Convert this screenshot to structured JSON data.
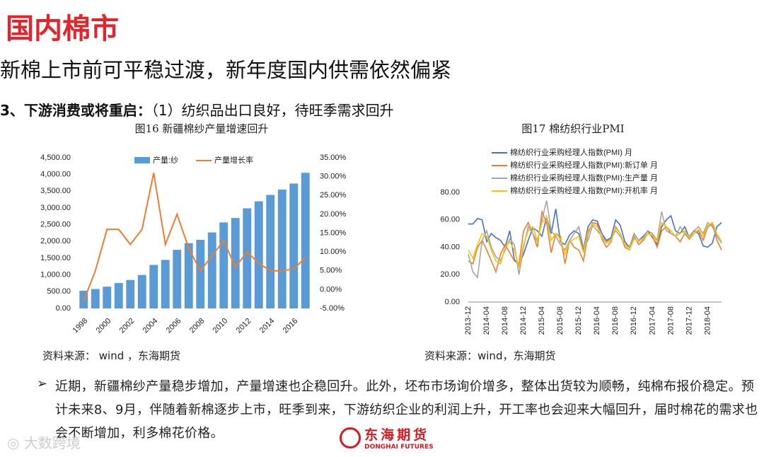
{
  "title": "国内棉市",
  "subtitle": "新棉上市前可平稳过渡，新年度国内供需依然偏紧",
  "section": {
    "label": "3、下游消费或将重启：",
    "text": "（1）纺织品出口良好，待旺季需求回升"
  },
  "chart_data": [
    {
      "type": "bar",
      "title": "图16 新疆棉纱产量增速回升",
      "categories": [
        "1998",
        null,
        "2000",
        null,
        "2002",
        null,
        "2004",
        null,
        "2006",
        null,
        "2008",
        null,
        "2010",
        null,
        "2012",
        null,
        "2014",
        null,
        "2016",
        null
      ],
      "series": [
        {
          "name": "产量:纱",
          "type": "bar",
          "color": "#5b9bd5",
          "values": [
            530,
            580,
            650,
            760,
            850,
            1000,
            1300,
            1450,
            1750,
            1950,
            2050,
            2270,
            2570,
            2700,
            2990,
            3200,
            3390,
            3550,
            3730,
            4050
          ]
        },
        {
          "name": "产量增长率",
          "type": "line",
          "axis": "y2",
          "color": "#ed7d31",
          "values": [
            -3,
            5,
            16,
            16,
            12,
            16,
            31,
            12,
            20,
            11,
            5,
            9,
            13,
            6,
            10,
            7,
            5,
            5,
            5.5,
            8.5
          ]
        }
      ],
      "ylim": [
        0,
        4500
      ],
      "yticks": [
        {
          "value": 0,
          "label": "0.00"
        },
        {
          "value": 500,
          "label": "500.00"
        },
        {
          "value": 1000,
          "label": "1,000.00"
        },
        {
          "value": 1500,
          "label": "1,500.00"
        },
        {
          "value": 2000,
          "label": "2,000.00"
        },
        {
          "value": 2500,
          "label": "2,500.00"
        },
        {
          "value": 3000,
          "label": "3,000.00"
        },
        {
          "value": 3500,
          "label": "3,500.00"
        },
        {
          "value": 4000,
          "label": "4,000.00"
        },
        {
          "value": 4500,
          "label": "4,500.00"
        }
      ],
      "y2lim": [
        -5,
        35
      ],
      "y2ticks": [
        {
          "value": -5,
          "label": "-5.00%"
        },
        {
          "value": 0,
          "label": "0.00%"
        },
        {
          "value": 5,
          "label": "5.00%"
        },
        {
          "value": 10,
          "label": "10.00%"
        },
        {
          "value": 15,
          "label": "15.00%"
        },
        {
          "value": 20,
          "label": "20.00%"
        },
        {
          "value": 25,
          "label": "25.00%"
        },
        {
          "value": 30,
          "label": "30.00%"
        },
        {
          "value": 35,
          "label": "35.00%"
        }
      ],
      "grid": false,
      "legend": "top"
    },
    {
      "type": "line",
      "title": "图17 棉纺织行业PMI",
      "categories": [
        "2013-12",
        null,
        null,
        null,
        "2014-04",
        null,
        null,
        null,
        "2014-08",
        null,
        null,
        null,
        "2014-12",
        null,
        null,
        null,
        "2015-04",
        null,
        null,
        null,
        "2015-08",
        null,
        null,
        null,
        "2015-12",
        null,
        null,
        null,
        "2016-04",
        null,
        null,
        null,
        "2016-08",
        null,
        null,
        null,
        "2016-12",
        null,
        null,
        null,
        "2017-04",
        null,
        null,
        null,
        "2017-08",
        null,
        null,
        null,
        "2017-12",
        null,
        null,
        null,
        "2018-04",
        null,
        null,
        null
      ],
      "series": [
        {
          "name": "棉纺织行业采购经理人指数(PMI) 月",
          "color": "#4472c4",
          "values": [
            57,
            57,
            61,
            60,
            44,
            50,
            47,
            45,
            40,
            52,
            31,
            27,
            35,
            45,
            54,
            52,
            48,
            62,
            50,
            68,
            44,
            42,
            49,
            52,
            50,
            38,
            55,
            60,
            59,
            50,
            45,
            47,
            60,
            56,
            44,
            40,
            50,
            45,
            48,
            52,
            47,
            42,
            55,
            60,
            63,
            52,
            50,
            55,
            47,
            52,
            50,
            41,
            40,
            43,
            55,
            58
          ]
        },
        {
          "name": "棉纺织行业采购经理人指数(PMI):新订单 月",
          "color": "#ed7d31",
          "values": [
            30,
            28,
            40,
            45,
            38,
            30,
            22,
            35,
            42,
            36,
            30,
            28,
            52,
            58,
            50,
            40,
            66,
            58,
            36,
            50,
            48,
            28,
            45,
            40,
            38,
            30,
            50,
            58,
            57,
            46,
            40,
            44,
            55,
            50,
            40,
            38,
            48,
            42,
            45,
            50,
            48,
            40,
            52,
            55,
            50,
            48,
            44,
            50,
            46,
            50,
            52,
            45,
            55,
            57,
            45,
            38
          ]
        },
        {
          "name": "棉纺织行业采购经理人指数(PMI):生产量 月",
          "color": "#a5a5a5",
          "values": [
            35,
            22,
            18,
            45,
            52,
            40,
            33,
            30,
            38,
            46,
            42,
            20,
            40,
            55,
            50,
            44,
            60,
            74,
            52,
            48,
            42,
            38,
            45,
            50,
            55,
            40,
            45,
            56,
            52,
            48,
            44,
            46,
            52,
            48,
            42,
            40,
            50,
            45,
            47,
            52,
            50,
            45,
            66,
            52,
            50,
            48,
            55,
            50,
            48,
            52,
            55,
            50,
            58,
            55,
            48,
            43
          ]
        },
        {
          "name": "棉纺织行业采购经理人指数(PMI):开机率 月",
          "color": "#ffc000",
          "values": [
            38,
            32,
            42,
            50,
            48,
            38,
            30,
            28,
            40,
            44,
            38,
            25,
            42,
            52,
            55,
            45,
            58,
            62,
            45,
            50,
            46,
            35,
            44,
            46,
            48,
            36,
            52,
            57,
            55,
            47,
            43,
            45,
            54,
            50,
            42,
            38,
            46,
            44,
            46,
            50,
            49,
            44,
            58,
            55,
            52,
            48,
            50,
            52,
            47,
            50,
            53,
            48,
            56,
            58,
            50,
            44
          ]
        }
      ],
      "ylim": [
        0,
        80
      ],
      "yticks": [
        {
          "value": 0,
          "label": "0.00"
        },
        {
          "value": 20,
          "label": "20.00"
        },
        {
          "value": 40,
          "label": "40.00"
        },
        {
          "value": 60,
          "label": "60.00"
        },
        {
          "value": 80,
          "label": "80.00"
        }
      ],
      "grid": false,
      "legend": "top-left"
    }
  ],
  "sources": [
    "资料来源： wind ，东海期货",
    "资料来源：wind，东海期货"
  ],
  "bullet": "近期，新疆棉纱产量稳步增加，产量增速也企稳回升。此外，坯布市场询价增多，整体出货较为顺畅，纯棉布报价稳定。预计未来8、9月，伴随着新棉逐步上市，旺季到来，下游纺织企业的利润上升，开工率也会迎来大幅回升，届时棉花的需求也会不断增加，利多棉花价格。",
  "logo": {
    "cn": "东海期货",
    "en": "DONGHAI FUTURES"
  },
  "watermark": "大数跨境"
}
